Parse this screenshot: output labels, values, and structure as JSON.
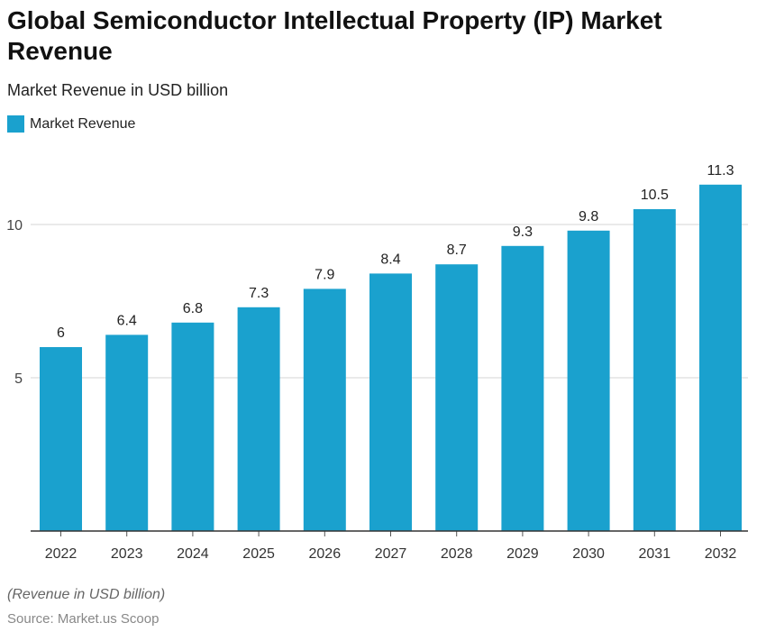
{
  "chart_data": {
    "type": "bar",
    "title": "Global Semiconductor Intellectual Property (IP) Market Revenue",
    "subtitle": "Market Revenue in USD billion",
    "categories": [
      "2022",
      "2023",
      "2024",
      "2025",
      "2026",
      "2027",
      "2028",
      "2029",
      "2030",
      "2031",
      "2032"
    ],
    "series": [
      {
        "name": "Market Revenue",
        "values": [
          6,
          6.4,
          6.8,
          7.3,
          7.9,
          8.4,
          8.7,
          9.3,
          9.8,
          10.5,
          11.3
        ]
      }
    ],
    "data_labels": [
      "6",
      "6.4",
      "6.8",
      "7.3",
      "7.9",
      "8.4",
      "8.7",
      "9.3",
      "9.8",
      "10.5",
      "11.3"
    ],
    "ylim": [
      0,
      12.5
    ],
    "yticks": [
      5,
      10
    ],
    "ytick_labels": [
      "5",
      "10"
    ],
    "grid": true,
    "legend_position": "top-left",
    "bar_color": "#1aa1ce"
  },
  "footer": {
    "note": "(Revenue in USD billion)",
    "source": "Source: Market.us Scoop"
  }
}
